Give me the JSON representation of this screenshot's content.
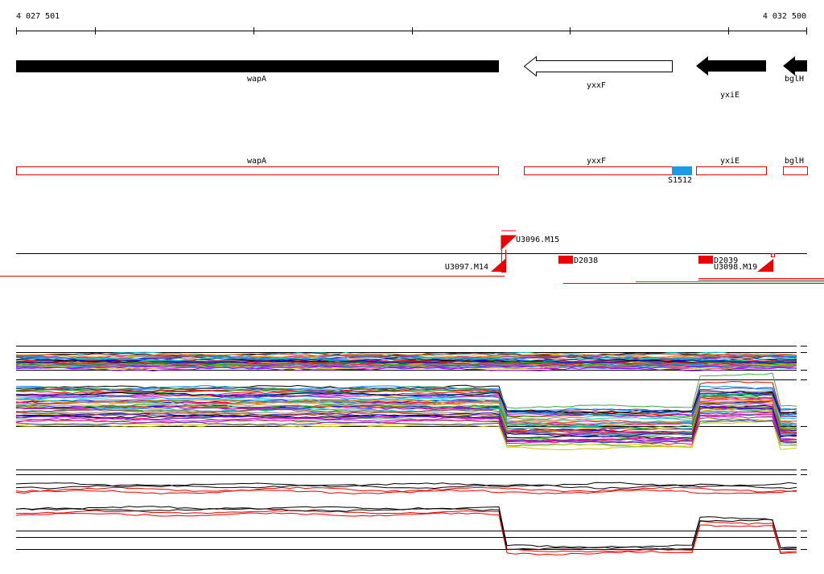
{
  "ruler": {
    "start": "4 027 501",
    "end": "4 032 500"
  },
  "genes": [
    "wapA",
    "yxxF",
    "yxiE",
    "bglH"
  ],
  "regions": {
    "names": [
      "wapA",
      "yxxF",
      "yxiE",
      "bglH"
    ],
    "feature": "S1512"
  },
  "markers": {
    "up": [
      "U3096.M15",
      "U3097.M14",
      "U3098.M19"
    ],
    "down": [
      "D2038",
      "D2039"
    ]
  }
}
